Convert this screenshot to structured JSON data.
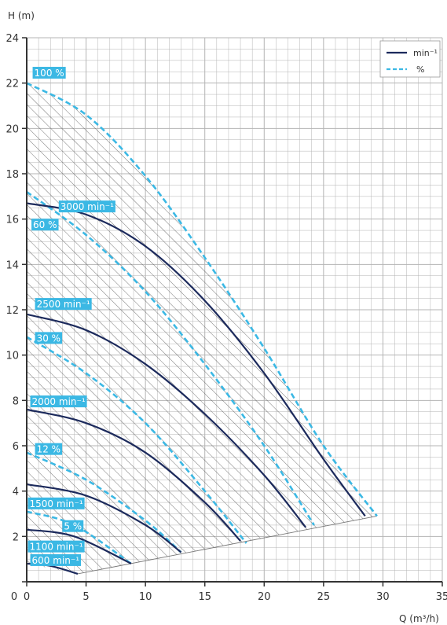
{
  "chart_data": {
    "type": "line",
    "title": "",
    "xlabel": "Q (m³/h)",
    "ylabel": "H (m)",
    "xlim": [
      0,
      35
    ],
    "ylim": [
      0,
      24
    ],
    "x_ticks": [
      "0",
      "5",
      "10",
      "15",
      "20",
      "25",
      "30",
      "35"
    ],
    "y_ticks": [
      "0",
      "2",
      "4",
      "6",
      "8",
      "10",
      "12",
      "14",
      "16",
      "18",
      "20",
      "22",
      "24"
    ],
    "grid": true,
    "minor_grid_x_step": 1,
    "minor_grid_y_step": 0.5,
    "legend": {
      "placement": "top-right",
      "entries": [
        {
          "name": "min⁻¹",
          "style": "solid",
          "color": "#1c2a5c"
        },
        {
          "name": "%",
          "style": "dashed",
          "color": "#3bb8e4"
        }
      ]
    },
    "colors": {
      "speed": "#1c2a5c",
      "efficiency": "#3bb8e4",
      "label_bg": "#3bb8e4",
      "hatch": "#555555",
      "grid": "#b4b4b4"
    },
    "speed_curves": [
      {
        "name": "3000 min⁻¹",
        "label": "3000 min⁻¹",
        "label_at": [
          2.7,
          16.4
        ],
        "x": [
          0,
          5,
          10,
          15,
          20,
          25,
          28.5
        ],
        "y": [
          16.7,
          16.2,
          14.8,
          12.4,
          9.2,
          5.4,
          2.9
        ]
      },
      {
        "name": "2500 min⁻¹",
        "label": "2500 min⁻¹",
        "label_at": [
          0.7,
          12.1
        ],
        "x": [
          0,
          5,
          10,
          15,
          20,
          23.5
        ],
        "y": [
          11.8,
          11.1,
          9.6,
          7.4,
          4.7,
          2.4
        ]
      },
      {
        "name": "2000 min⁻¹",
        "label": "2000 min⁻¹",
        "label_at": [
          0.3,
          7.8
        ],
        "x": [
          0,
          5,
          10,
          15,
          18
        ],
        "y": [
          7.6,
          7.0,
          5.7,
          3.5,
          1.8
        ]
      },
      {
        "name": "1500 min⁻¹",
        "label": "1500 min⁻¹",
        "label_at": [
          0.1,
          3.3
        ],
        "x": [
          0,
          5,
          10,
          13
        ],
        "y": [
          4.3,
          3.8,
          2.5,
          1.3
        ]
      },
      {
        "name": "1100 min⁻¹",
        "label": "1100 min⁻¹",
        "label_at": [
          0.1,
          1.4
        ],
        "x": [
          0,
          4,
          8.8
        ],
        "y": [
          2.3,
          2.0,
          0.8
        ]
      },
      {
        "name": "600 min⁻¹",
        "label": "600 min⁻¹",
        "label_at": [
          0.3,
          0.8
        ],
        "x": [
          0,
          2,
          4.3
        ],
        "y": [
          0.8,
          0.7,
          0.35
        ]
      }
    ],
    "efficiency_curves": [
      {
        "name": "100 %",
        "label": "100 %",
        "label_at": [
          0.5,
          22.3
        ],
        "x": [
          0,
          5,
          10,
          15,
          20,
          25,
          29.5
        ],
        "y": [
          22.0,
          20.6,
          17.9,
          14.3,
          10.3,
          6.0,
          2.9
        ]
      },
      {
        "name": "60 %",
        "label": "60 %",
        "label_at": [
          0.4,
          15.6
        ],
        "x": [
          0,
          5,
          10,
          15,
          20,
          24.2
        ],
        "y": [
          17.2,
          15.3,
          12.8,
          9.6,
          6.0,
          2.5
        ]
      },
      {
        "name": "30 %",
        "label": "30 %",
        "label_at": [
          0.7,
          10.6
        ],
        "x": [
          0,
          5,
          10,
          15,
          18.5
        ],
        "y": [
          10.8,
          9.2,
          7.0,
          4.0,
          1.7
        ]
      },
      {
        "name": "12 %",
        "label": "12 %",
        "label_at": [
          0.7,
          5.7
        ],
        "x": [
          0,
          5,
          10,
          13
        ],
        "y": [
          5.7,
          4.5,
          2.7,
          1.3
        ]
      },
      {
        "name": "5 %",
        "label": "5 %",
        "label_at": [
          3.0,
          2.3
        ],
        "x": [
          0,
          4,
          8.8
        ],
        "y": [
          3.1,
          2.5,
          0.8
        ]
      }
    ],
    "operating_area": {
      "boundary": [
        [
          0,
          22.0
        ],
        [
          5,
          20.6
        ],
        [
          10,
          17.9
        ],
        [
          15,
          14.3
        ],
        [
          20,
          10.3
        ],
        [
          25,
          6.0
        ],
        [
          29.5,
          2.9
        ],
        [
          4.3,
          0.35
        ],
        [
          0,
          0.8
        ]
      ],
      "fill": "hatch"
    }
  }
}
